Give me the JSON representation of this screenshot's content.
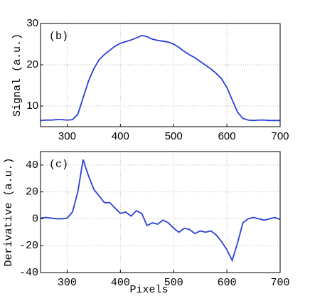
{
  "chart_data": [
    {
      "type": "line",
      "annotation": "(b)",
      "ylabel": "Signal (a.u.)",
      "x": [
        250,
        260,
        270,
        280,
        290,
        300,
        310,
        320,
        330,
        340,
        350,
        360,
        370,
        380,
        390,
        400,
        410,
        420,
        430,
        440,
        450,
        460,
        470,
        480,
        490,
        500,
        510,
        520,
        530,
        540,
        550,
        560,
        570,
        580,
        590,
        600,
        610,
        620,
        630,
        640,
        650,
        660,
        670,
        680,
        690,
        700
      ],
      "series": [
        {
          "color": "#2b3fd6",
          "values": [
            6.5,
            6.6,
            6.6,
            6.7,
            6.7,
            6.6,
            6.7,
            8,
            12,
            16,
            19,
            21.2,
            22.5,
            23.5,
            24.5,
            25.2,
            25.6,
            26,
            26.5,
            27.1,
            26.8,
            26.2,
            25.9,
            25.7,
            25.5,
            25,
            24.2,
            23.2,
            22.4,
            21.7,
            20.8,
            19.9,
            19,
            17.9,
            16.6,
            14.5,
            11.5,
            8.5,
            7,
            6.6,
            6.5,
            6.6,
            6.6,
            6.5,
            6.5,
            6.5
          ]
        }
      ],
      "xlim": [
        250,
        700
      ],
      "xticks": [
        300,
        400,
        500,
        600,
        700
      ],
      "ylim": [
        5,
        30
      ],
      "yticks": [
        10,
        20,
        30
      ],
      "grid": true
    },
    {
      "type": "line",
      "annotation": "(c)",
      "ylabel": "Derivative (a.u.)",
      "xlabel": "Pixels",
      "x": [
        250,
        260,
        270,
        280,
        290,
        300,
        310,
        320,
        330,
        340,
        350,
        360,
        370,
        380,
        390,
        400,
        410,
        420,
        430,
        440,
        450,
        460,
        470,
        480,
        490,
        500,
        510,
        520,
        530,
        540,
        550,
        560,
        570,
        580,
        590,
        600,
        610,
        620,
        630,
        640,
        650,
        660,
        670,
        680,
        690,
        700
      ],
      "series": [
        {
          "color": "#2b3fd6",
          "values": [
            0.5,
            1,
            0.5,
            0,
            0,
            0.5,
            5,
            20,
            44,
            32,
            22,
            17,
            12,
            12,
            8,
            4,
            5,
            2,
            6,
            4,
            -5,
            -3,
            -4,
            -1,
            -3,
            -7,
            -10,
            -7,
            -8,
            -11,
            -9,
            -10,
            -9,
            -12,
            -17,
            -23,
            -31,
            -18,
            -3,
            0,
            1,
            0,
            -1,
            0,
            1,
            -0.5
          ]
        }
      ],
      "xlim": [
        250,
        700
      ],
      "xticks": [
        300,
        400,
        500,
        600,
        700
      ],
      "ylim": [
        -40,
        50
      ],
      "yticks": [
        -40,
        -20,
        0,
        20,
        40
      ],
      "grid": true
    }
  ]
}
